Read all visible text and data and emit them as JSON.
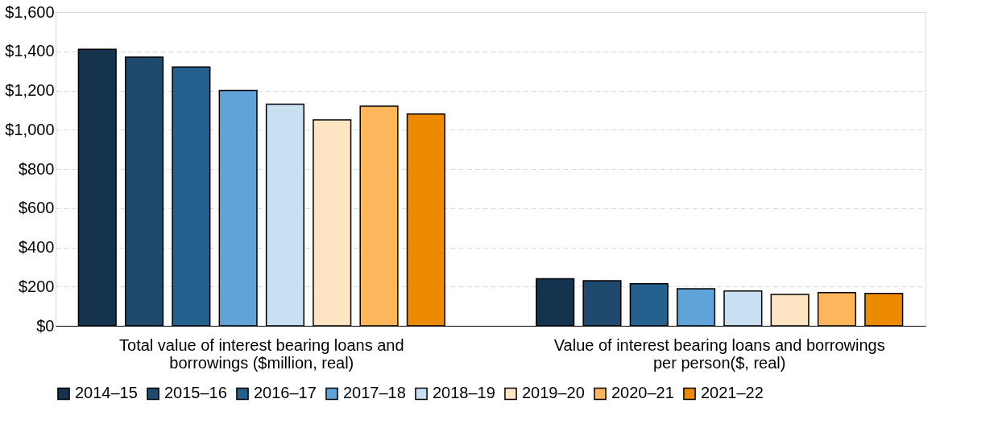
{
  "chart_data": {
    "type": "bar",
    "categories": [
      "Total value of interest bearing loans and borrowings ($million, real)",
      "Value of interest bearing loans and borrowings per person($, real)"
    ],
    "series": [
      {
        "name": "2014–15",
        "color": "#15324f",
        "values": [
          1410,
          240
        ]
      },
      {
        "name": "2015–16",
        "color": "#1f4a6e",
        "values": [
          1370,
          230
        ]
      },
      {
        "name": "2016–17",
        "color": "#24618f",
        "values": [
          1320,
          214
        ]
      },
      {
        "name": "2017–18",
        "color": "#5fa3d9",
        "values": [
          1200,
          189
        ]
      },
      {
        "name": "2018–19",
        "color": "#c9dff2",
        "values": [
          1130,
          177
        ]
      },
      {
        "name": "2019–20",
        "color": "#fde5c4",
        "values": [
          1050,
          160
        ]
      },
      {
        "name": "2020–21",
        "color": "#fdb65c",
        "values": [
          1120,
          169
        ]
      },
      {
        "name": "2021–22",
        "color": "#ec8a00",
        "values": [
          1080,
          165
        ]
      }
    ],
    "ylim": [
      0,
      1600
    ],
    "yticks": [
      {
        "value": 0,
        "label": "$0"
      },
      {
        "value": 200,
        "label": "$200"
      },
      {
        "value": 400,
        "label": "$400"
      },
      {
        "value": 600,
        "label": "$600"
      },
      {
        "value": 800,
        "label": "$800"
      },
      {
        "value": 1000,
        "label": "$1,000"
      },
      {
        "value": 1200,
        "label": "$1,200"
      },
      {
        "value": 1400,
        "label": "$1,400"
      },
      {
        "value": 1600,
        "label": "$1,600"
      }
    ],
    "grid": "y",
    "legend": "bottom"
  }
}
